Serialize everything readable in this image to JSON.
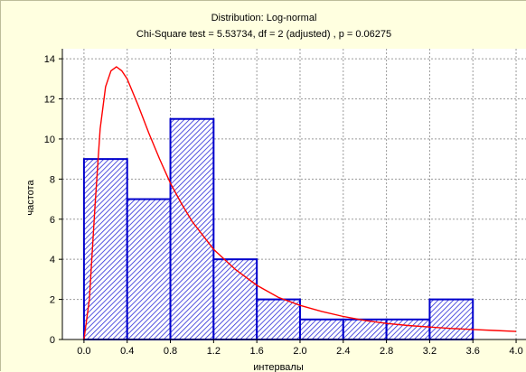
{
  "title": "Distribution: Log-normal",
  "subtitle": "Chi-Square test = 5.53734, df = 2 (adjusted) , p = 0.06275",
  "chart_data": {
    "type": "bar",
    "title": "Distribution: Log-normal",
    "subtitle": "Chi-Square test = 5.53734, df = 2 (adjusted) , p = 0.06275",
    "xlabel": "интервалы",
    "ylabel": "частота",
    "xlim": [
      -0.2,
      4.1
    ],
    "ylim": [
      0,
      14.5
    ],
    "grid": true,
    "x_ticks": [
      "0.0",
      "0.4",
      "0.8",
      "1.2",
      "1.6",
      "2.0",
      "2.4",
      "2.8",
      "3.2",
      "3.6",
      "4.0"
    ],
    "y_ticks": [
      "0",
      "2",
      "4",
      "6",
      "8",
      "10",
      "12",
      "14"
    ],
    "bins": [
      {
        "from": 0.0,
        "to": 0.4,
        "count": 9
      },
      {
        "from": 0.4,
        "to": 0.8,
        "count": 7
      },
      {
        "from": 0.8,
        "to": 1.2,
        "count": 11
      },
      {
        "from": 1.2,
        "to": 1.6,
        "count": 4
      },
      {
        "from": 1.6,
        "to": 2.0,
        "count": 2
      },
      {
        "from": 2.0,
        "to": 2.4,
        "count": 1
      },
      {
        "from": 2.4,
        "to": 2.8,
        "count": 1
      },
      {
        "from": 2.8,
        "to": 3.2,
        "count": 1
      },
      {
        "from": 3.2,
        "to": 3.6,
        "count": 2
      }
    ],
    "fit_curve": {
      "x": [
        0.0,
        0.05,
        0.1,
        0.15,
        0.2,
        0.25,
        0.3,
        0.35,
        0.4,
        0.5,
        0.6,
        0.7,
        0.8,
        0.9,
        1.0,
        1.2,
        1.4,
        1.6,
        1.8,
        2.0,
        2.2,
        2.4,
        2.6,
        2.8,
        3.0,
        3.2,
        3.4,
        3.6,
        3.8,
        4.0
      ],
      "y": [
        0.0,
        2.0,
        6.5,
        10.5,
        12.6,
        13.4,
        13.6,
        13.4,
        13.0,
        11.7,
        10.3,
        9.0,
        7.8,
        6.8,
        5.9,
        4.5,
        3.5,
        2.7,
        2.1,
        1.7,
        1.4,
        1.15,
        0.95,
        0.8,
        0.7,
        0.62,
        0.55,
        0.5,
        0.45,
        0.4
      ]
    },
    "colors": {
      "bar_stroke": "#0000cc",
      "bar_hatch": "#2a2ad8",
      "curve": "#ff0000",
      "grid": "#9a9a9a",
      "plot_bg": "#ffffff",
      "frame_bg": "#ffffe0"
    }
  }
}
